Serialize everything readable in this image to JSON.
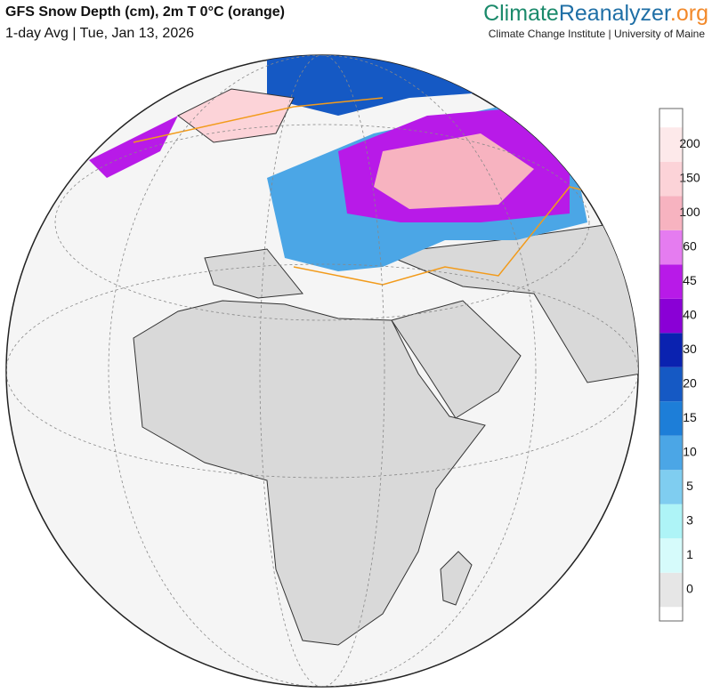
{
  "header": {
    "title": "GFS Snow Depth (cm), 2m T 0°C (orange)",
    "subtitle": "1-day Avg | Tue, Jan 13, 2026"
  },
  "brand": {
    "parts": [
      "Climate",
      "Reanalyzer",
      ".org"
    ],
    "tagline": "Climate Change Institute | University of Maine"
  },
  "colorbar": {
    "labels": [
      "0",
      "1",
      "3",
      "5",
      "10",
      "15",
      "20",
      "30",
      "40",
      "45",
      "60",
      "100",
      "150",
      "200"
    ],
    "colors": [
      "#e6e6e6",
      "#d6fbfb",
      "#aef4f7",
      "#7fcdf0",
      "#4ba6e6",
      "#1d7ed8",
      "#1559c4",
      "#0a22b0",
      "#8a00d6",
      "#b81ae8",
      "#e57cf0",
      "#f7b3c0",
      "#fcd3d8",
      "#fde9ea"
    ]
  }
}
